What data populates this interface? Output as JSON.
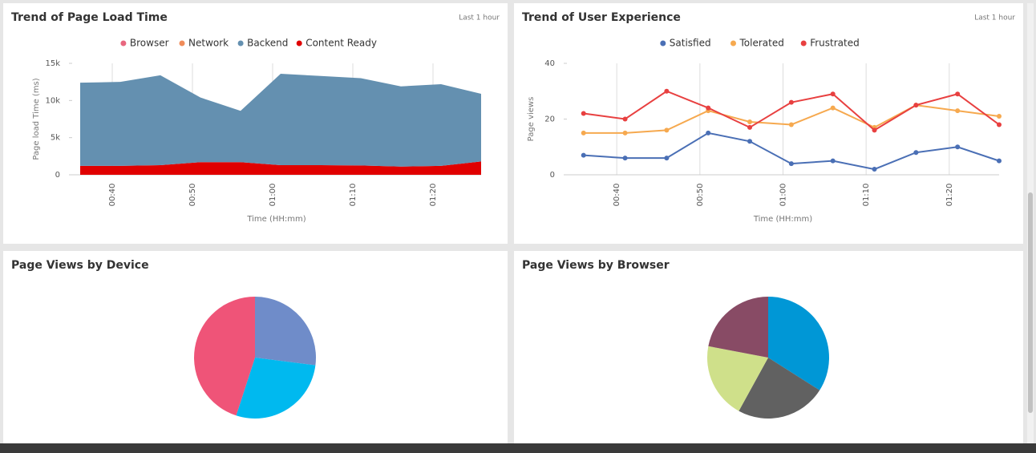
{
  "chart_data": [
    {
      "type": "area",
      "title": "Trend of Page Load Time",
      "annotation": "Last 1 hour",
      "stacked": true,
      "x": [
        "00:36",
        "00:41",
        "00:46",
        "00:51",
        "00:56",
        "01:01",
        "01:06",
        "01:11",
        "01:16",
        "01:21",
        "01:26"
      ],
      "series": [
        {
          "name": "Browser",
          "color": "#e8677f",
          "values": [
            0,
            0,
            0,
            0,
            0,
            0,
            0,
            0,
            0,
            0,
            0
          ]
        },
        {
          "name": "Network",
          "color": "#f08c5a",
          "values": [
            0,
            0,
            0,
            0,
            0,
            0,
            0,
            0,
            0,
            0,
            0
          ]
        },
        {
          "name": "Backend",
          "color": "#6490b0",
          "values": [
            11200,
            11300,
            12100,
            8700,
            6900,
            12300,
            12000,
            11750,
            10800,
            11000,
            9100
          ]
        },
        {
          "name": "Content Ready",
          "color": "#e00000",
          "values": [
            1200,
            1200,
            1300,
            1700,
            1700,
            1300,
            1300,
            1250,
            1100,
            1200,
            1800
          ]
        }
      ],
      "xlabel": "Time (HH:mm)",
      "ylabel": "Page load Time (ms)",
      "xlim": [
        "00:35",
        "01:26"
      ],
      "xticks": [
        "00:40",
        "00:50",
        "01:00",
        "01:10",
        "01:20"
      ],
      "ylim": [
        0,
        15000
      ],
      "yticks": [
        0,
        {
          "value": 5000,
          "label": "5k"
        },
        {
          "value": 10000,
          "label": "10k"
        },
        {
          "value": 15000,
          "label": "15k"
        }
      ],
      "grid": true
    },
    {
      "type": "line",
      "title": "Trend of User Experience",
      "annotation": "Last 1 hour",
      "x": [
        "00:36",
        "00:41",
        "00:46",
        "00:51",
        "00:56",
        "01:01",
        "01:06",
        "01:11",
        "01:16",
        "01:21",
        "01:26"
      ],
      "series": [
        {
          "name": "Satisfied",
          "color": "#4a6fb5",
          "values": [
            7,
            6,
            6,
            15,
            12,
            4,
            5,
            2,
            8,
            10,
            5
          ]
        },
        {
          "name": "Tolerated",
          "color": "#f6a94f",
          "values": [
            15,
            15,
            16,
            23,
            19,
            18,
            24,
            17,
            25,
            23,
            21
          ]
        },
        {
          "name": "Frustrated",
          "color": "#e84040",
          "values": [
            22,
            20,
            30,
            24,
            17,
            26,
            29,
            16,
            25,
            29,
            18
          ]
        }
      ],
      "xlabel": "Time (HH:mm)",
      "ylabel": "Page views",
      "xlim": [
        "00:34",
        "01:26"
      ],
      "xticks": [
        "00:40",
        "00:50",
        "01:00",
        "01:10",
        "01:20"
      ],
      "ylim": [
        0,
        40
      ],
      "yticks": [
        0,
        20,
        40
      ],
      "grid": true
    },
    {
      "type": "pie",
      "title": "Page Views by Device",
      "values": [
        27,
        28,
        45
      ],
      "colors": [
        "#6f8cc9",
        "#00b9ef",
        "#ef5478"
      ]
    },
    {
      "type": "pie",
      "title": "Page Views by Browser",
      "values": [
        34,
        24,
        20,
        22
      ],
      "colors": [
        "#0097d6",
        "#616161",
        "#cfe08a",
        "#884b65"
      ]
    }
  ]
}
